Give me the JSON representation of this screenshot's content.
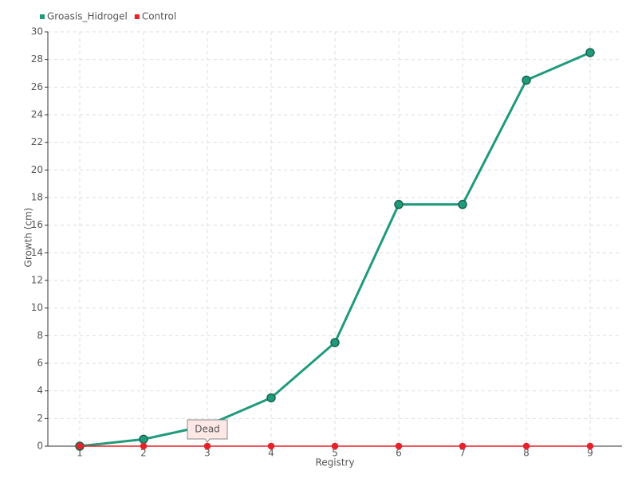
{
  "chart_data": {
    "type": "line",
    "x_label": "Registry",
    "y_label": "Growth (cm)",
    "x": [
      1,
      2,
      3,
      4,
      5,
      6,
      7,
      8,
      9
    ],
    "series": [
      {
        "name": "Groasis_Hidrogel",
        "color": "#1f9a7b",
        "values": [
          0,
          0.5,
          1.5,
          3.5,
          7.5,
          17.5,
          17.5,
          26.5,
          28.5
        ]
      },
      {
        "name": "Control",
        "color": "#e8202a",
        "values": [
          0,
          0,
          0,
          0,
          0,
          0,
          0,
          0,
          0
        ]
      }
    ],
    "xlim": [
      0.5,
      9.5
    ],
    "xticks": [
      1,
      2,
      3,
      4,
      5,
      6,
      7,
      8,
      9
    ],
    "ylim": [
      0,
      30
    ],
    "yticks": [
      0,
      2,
      4,
      6,
      8,
      10,
      12,
      14,
      16,
      18,
      20,
      22,
      24,
      26,
      28,
      30
    ],
    "grid": true,
    "annotation": {
      "text": "Dead",
      "x": 3,
      "y": 0
    }
  }
}
